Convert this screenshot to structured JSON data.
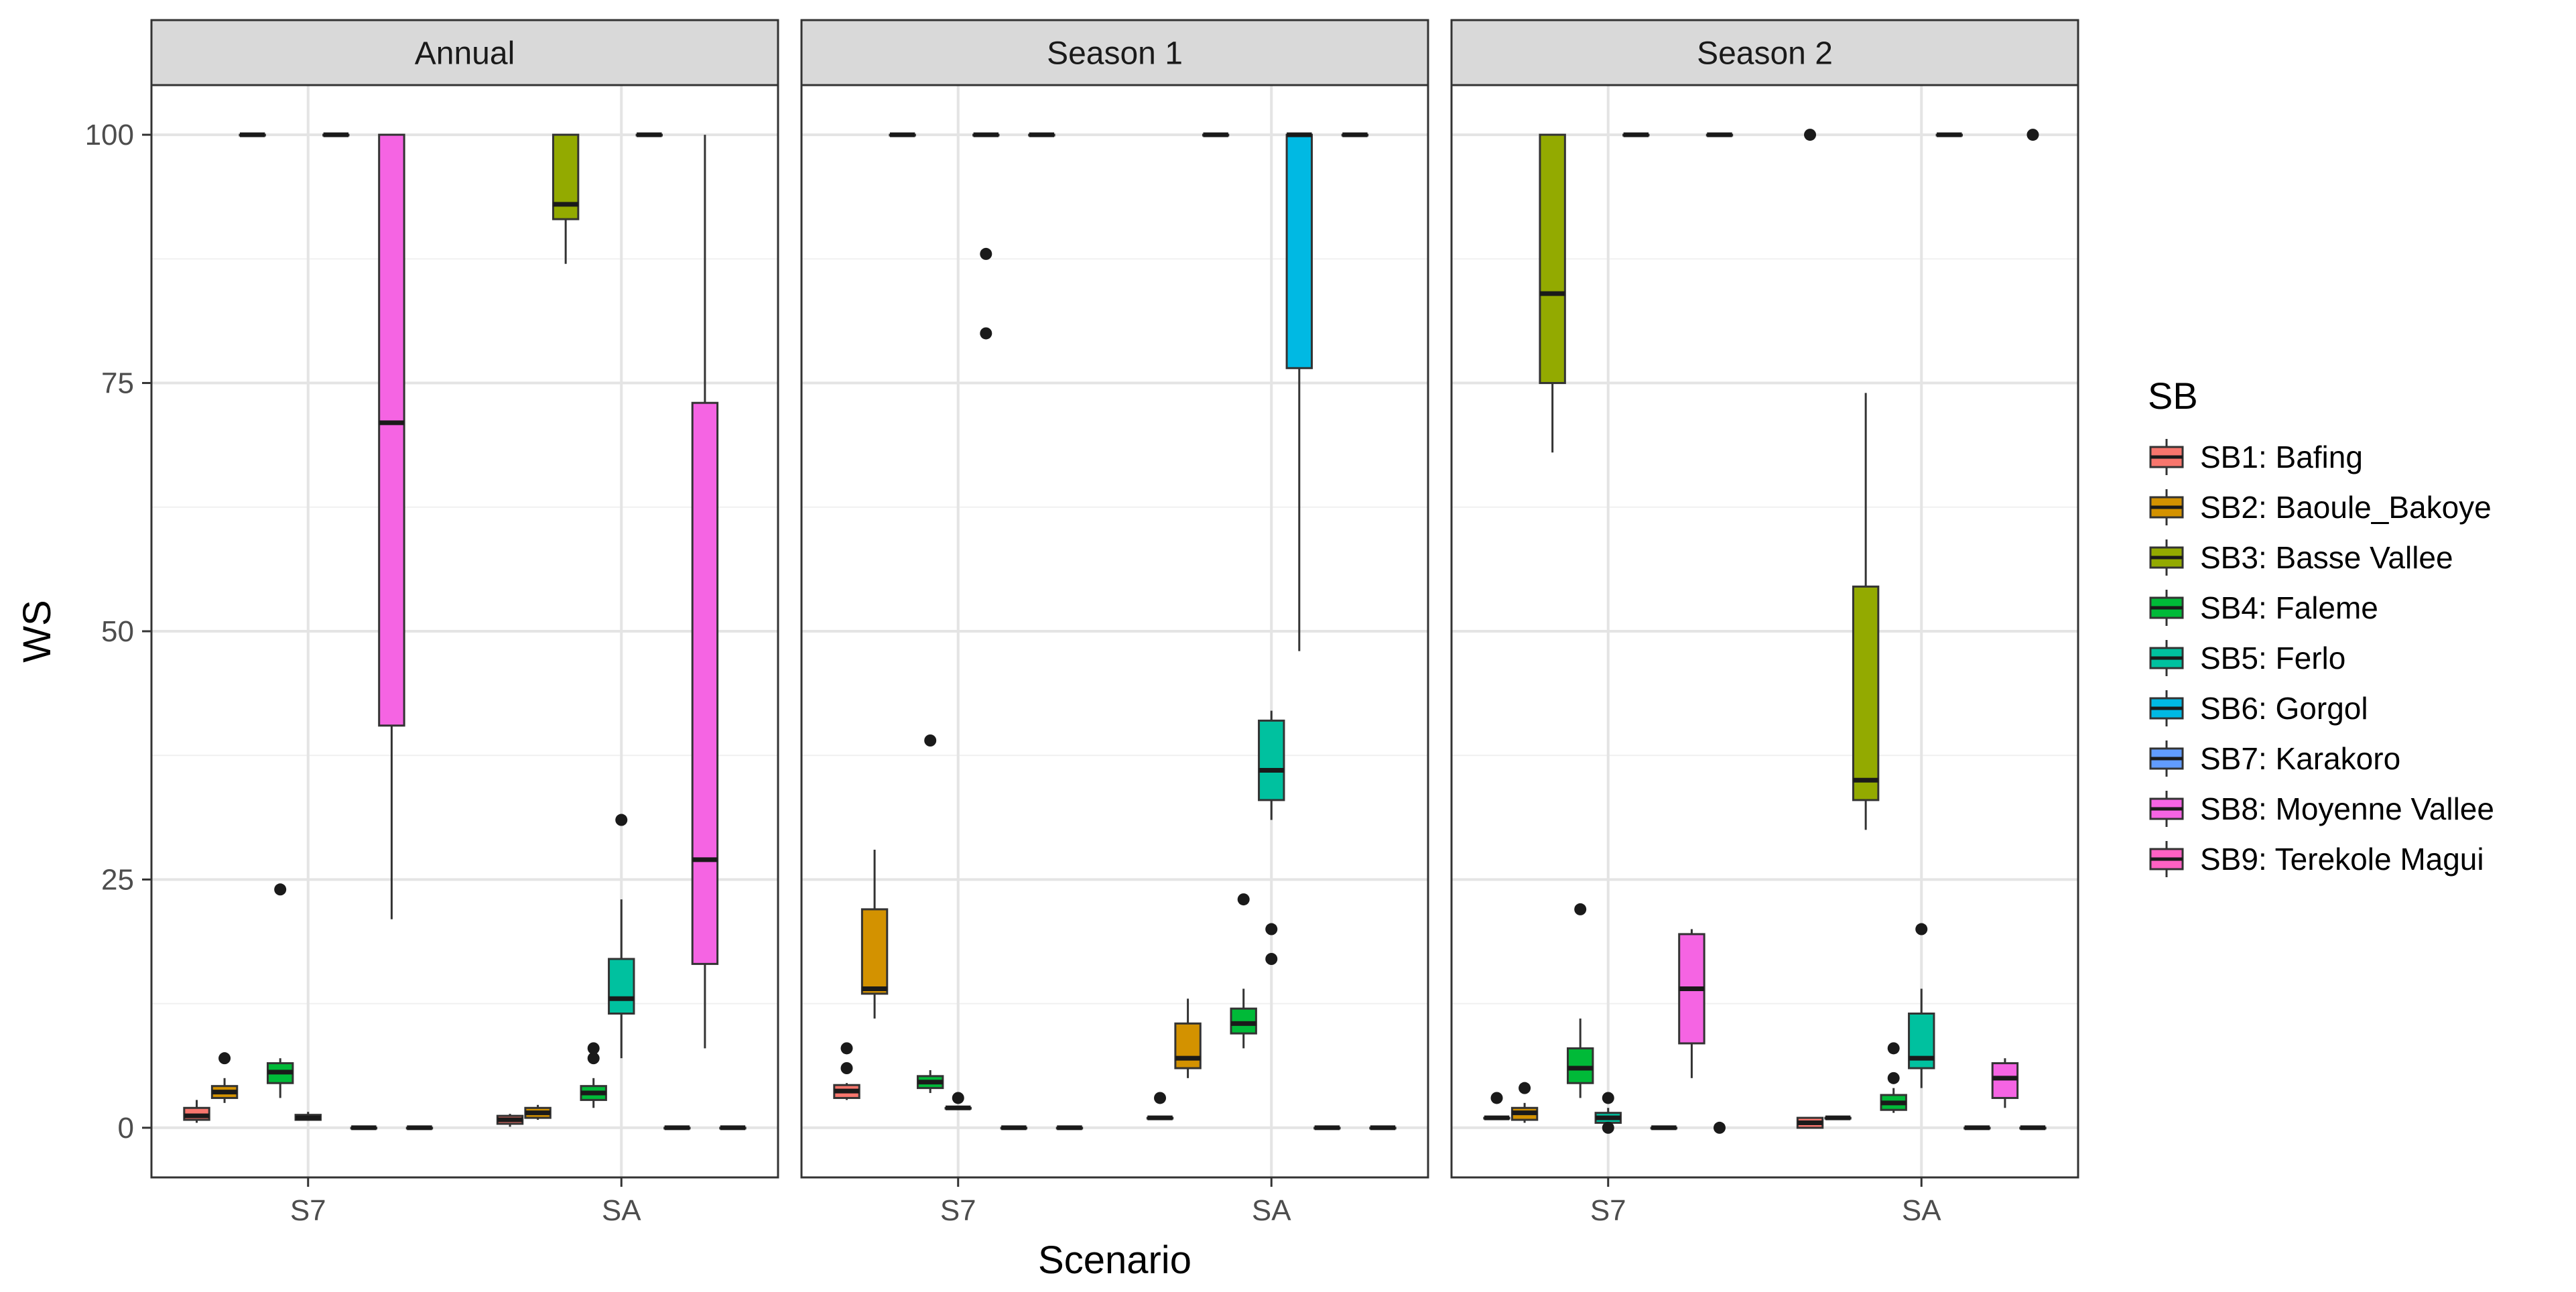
{
  "chart_data": {
    "type": "boxplot",
    "xlabel": "Scenario",
    "ylabel": "WS",
    "ylim": [
      -5,
      105
    ],
    "yticks": [
      0,
      25,
      50,
      75,
      100
    ],
    "ytick_labels": [
      "0",
      "25",
      "50",
      "75",
      "100"
    ],
    "categories": [
      "S7",
      "SA"
    ],
    "legend": {
      "title": "SB",
      "position": "right",
      "items": [
        {
          "id": "SB1",
          "label": "SB1:  Bafing",
          "color": "#F8766D"
        },
        {
          "id": "SB2",
          "label": "SB2:  Baoule_Bakoye",
          "color": "#D39200"
        },
        {
          "id": "SB3",
          "label": "SB3:  Basse Vallee",
          "color": "#93AA00"
        },
        {
          "id": "SB4",
          "label": "SB4:  Faleme",
          "color": "#00BA38"
        },
        {
          "id": "SB5",
          "label": "SB5:  Ferlo",
          "color": "#00C19F"
        },
        {
          "id": "SB6",
          "label": "SB6:  Gorgol",
          "color": "#00B9E3"
        },
        {
          "id": "SB7",
          "label": "SB7:  Karakoro",
          "color": "#619CFF"
        },
        {
          "id": "SB8",
          "label": "SB8:  Moyenne Vallee",
          "color": "#F564E3"
        },
        {
          "id": "SB9",
          "label": "SB9:  Terekole Magui",
          "color": "#FF61C3"
        }
      ]
    },
    "panels": [
      {
        "title": "Annual",
        "groups": [
          {
            "category": "S7",
            "boxes": [
              {
                "sb": 1,
                "q1": 0.8,
                "median": 1.2,
                "q3": 2,
                "lo": 0.5,
                "hi": 2.8,
                "outliers": []
              },
              {
                "sb": 2,
                "q1": 3,
                "median": 3.6,
                "q3": 4.2,
                "lo": 2.5,
                "hi": 5,
                "outliers": [
                  7
                ]
              },
              {
                "sb": 3,
                "q1": 100,
                "median": 100,
                "q3": 100,
                "lo": 100,
                "hi": 100,
                "outliers": []
              },
              {
                "sb": 4,
                "q1": 4.5,
                "median": 5.6,
                "q3": 6.5,
                "lo": 3,
                "hi": 7,
                "outliers": [
                  24
                ]
              },
              {
                "sb": 5,
                "q1": 0.8,
                "median": 1,
                "q3": 1.3,
                "lo": 0.7,
                "hi": 1.6,
                "outliers": []
              },
              {
                "sb": 6,
                "q1": 100,
                "median": 100,
                "q3": 100,
                "lo": 100,
                "hi": 100,
                "outliers": []
              },
              {
                "sb": 7,
                "q1": 0,
                "median": 0,
                "q3": 0,
                "lo": 0,
                "hi": 0,
                "outliers": []
              },
              {
                "sb": 8,
                "q1": 40.5,
                "median": 71,
                "q3": 100,
                "lo": 21,
                "hi": 100,
                "outliers": []
              },
              {
                "sb": 9,
                "q1": 0,
                "median": 0,
                "q3": 0,
                "lo": 0,
                "hi": 0,
                "outliers": []
              }
            ]
          },
          {
            "category": "SA",
            "boxes": [
              {
                "sb": 1,
                "q1": 0.4,
                "median": 0.8,
                "q3": 1.2,
                "lo": 0.1,
                "hi": 1.4,
                "outliers": []
              },
              {
                "sb": 2,
                "q1": 1,
                "median": 1.5,
                "q3": 2,
                "lo": 0.8,
                "hi": 2.3,
                "outliers": []
              },
              {
                "sb": 3,
                "q1": 91.5,
                "median": 93,
                "q3": 100,
                "lo": 87,
                "hi": 100,
                "outliers": []
              },
              {
                "sb": 4,
                "q1": 2.8,
                "median": 3.5,
                "q3": 4.2,
                "lo": 2,
                "hi": 5,
                "outliers": [
                  7,
                  8
                ]
              },
              {
                "sb": 5,
                "q1": 11.5,
                "median": 13,
                "q3": 17,
                "lo": 7,
                "hi": 23,
                "outliers": [
                  31
                ]
              },
              {
                "sb": 6,
                "q1": 100,
                "median": 100,
                "q3": 100,
                "lo": 100,
                "hi": 100,
                "outliers": []
              },
              {
                "sb": 7,
                "q1": 0,
                "median": 0,
                "q3": 0,
                "lo": 0,
                "hi": 0,
                "outliers": []
              },
              {
                "sb": 8,
                "q1": 16.5,
                "median": 27,
                "q3": 73,
                "lo": 8,
                "hi": 100,
                "outliers": []
              },
              {
                "sb": 9,
                "q1": 0,
                "median": 0,
                "q3": 0,
                "lo": 0,
                "hi": 0,
                "outliers": []
              }
            ]
          }
        ]
      },
      {
        "title": "Season 1",
        "groups": [
          {
            "category": "S7",
            "boxes": [
              {
                "sb": 1,
                "q1": 3,
                "median": 3.7,
                "q3": 4.3,
                "lo": 2.8,
                "hi": 4.5,
                "outliers": [
                  6,
                  8
                ]
              },
              {
                "sb": 2,
                "q1": 13.5,
                "median": 14,
                "q3": 22,
                "lo": 11,
                "hi": 28,
                "outliers": []
              },
              {
                "sb": 3,
                "q1": 100,
                "median": 100,
                "q3": 100,
                "lo": 100,
                "hi": 100,
                "outliers": []
              },
              {
                "sb": 4,
                "q1": 4,
                "median": 4.6,
                "q3": 5.2,
                "lo": 3.5,
                "hi": 5.8,
                "outliers": [
                  39
                ]
              },
              {
                "sb": 5,
                "q1": 2,
                "median": 2,
                "q3": 2,
                "lo": 2,
                "hi": 2,
                "outliers": [
                  3
                ]
              },
              {
                "sb": 6,
                "q1": 100,
                "median": 100,
                "q3": 100,
                "lo": 100,
                "hi": 100,
                "outliers": [
                  80,
                  88
                ]
              },
              {
                "sb": 7,
                "q1": 0,
                "median": 0,
                "q3": 0,
                "lo": 0,
                "hi": 0,
                "outliers": []
              },
              {
                "sb": 8,
                "q1": 100,
                "median": 100,
                "q3": 100,
                "lo": 100,
                "hi": 100,
                "outliers": []
              },
              {
                "sb": 9,
                "q1": 0,
                "median": 0,
                "q3": 0,
                "lo": 0,
                "hi": 0,
                "outliers": []
              }
            ]
          },
          {
            "category": "SA",
            "boxes": [
              {
                "sb": 1,
                "q1": 1,
                "median": 1,
                "q3": 1,
                "lo": 1,
                "hi": 1,
                "outliers": [
                  3
                ]
              },
              {
                "sb": 2,
                "q1": 6,
                "median": 7,
                "q3": 10.5,
                "lo": 5,
                "hi": 13,
                "outliers": []
              },
              {
                "sb": 3,
                "q1": 100,
                "median": 100,
                "q3": 100,
                "lo": 100,
                "hi": 100,
                "outliers": []
              },
              {
                "sb": 4,
                "q1": 9.5,
                "median": 10.5,
                "q3": 12,
                "lo": 8,
                "hi": 14,
                "outliers": [
                  23
                ]
              },
              {
                "sb": 5,
                "q1": 33,
                "median": 36,
                "q3": 41,
                "lo": 31,
                "hi": 42,
                "outliers": [
                  17,
                  20
                ]
              },
              {
                "sb": 6,
                "q1": 76.5,
                "median": 100,
                "q3": 100,
                "lo": 48,
                "hi": 100,
                "outliers": []
              },
              {
                "sb": 7,
                "q1": 0,
                "median": 0,
                "q3": 0,
                "lo": 0,
                "hi": 0,
                "outliers": []
              },
              {
                "sb": 8,
                "q1": 100,
                "median": 100,
                "q3": 100,
                "lo": 100,
                "hi": 100,
                "outliers": []
              },
              {
                "sb": 9,
                "q1": 0,
                "median": 0,
                "q3": 0,
                "lo": 0,
                "hi": 0,
                "outliers": []
              }
            ]
          }
        ]
      },
      {
        "title": "Season 2",
        "groups": [
          {
            "category": "S7",
            "boxes": [
              {
                "sb": 1,
                "q1": 1,
                "median": 1,
                "q3": 1,
                "lo": 1,
                "hi": 1,
                "outliers": [
                  3
                ]
              },
              {
                "sb": 2,
                "q1": 0.8,
                "median": 1.5,
                "q3": 2,
                "lo": 0.5,
                "hi": 2.5,
                "outliers": [
                  4
                ]
              },
              {
                "sb": 3,
                "q1": 75,
                "median": 84,
                "q3": 100,
                "lo": 68,
                "hi": 100,
                "outliers": []
              },
              {
                "sb": 4,
                "q1": 4.5,
                "median": 6,
                "q3": 8,
                "lo": 3,
                "hi": 11,
                "outliers": [
                  22
                ]
              },
              {
                "sb": 5,
                "q1": 0.5,
                "median": 1,
                "q3": 1.5,
                "lo": 0.3,
                "hi": 2,
                "outliers": [
                  0,
                  3
                ]
              },
              {
                "sb": 6,
                "q1": 100,
                "median": 100,
                "q3": 100,
                "lo": 100,
                "hi": 100,
                "outliers": []
              },
              {
                "sb": 7,
                "q1": 0,
                "median": 0,
                "q3": 0,
                "lo": 0,
                "hi": 0,
                "outliers": []
              },
              {
                "sb": 8,
                "q1": 8.5,
                "median": 14,
                "q3": 19.5,
                "lo": 5,
                "hi": 20,
                "outliers": []
              },
              {
                "sb": 9,
                "q1": 100,
                "median": 100,
                "q3": 100,
                "lo": 100,
                "hi": 100,
                "outliers": [
                  0
                ]
              }
            ]
          },
          {
            "category": "SA",
            "boxes": [
              {
                "sb": 1,
                "q1": 0,
                "median": 0.5,
                "q3": 1,
                "lo": 0,
                "hi": 1,
                "outliers": [
                  100
                ]
              },
              {
                "sb": 2,
                "q1": 1,
                "median": 1,
                "q3": 1,
                "lo": 1,
                "hi": 1,
                "outliers": []
              },
              {
                "sb": 3,
                "q1": 33,
                "median": 35,
                "q3": 54.5,
                "lo": 30,
                "hi": 74,
                "outliers": []
              },
              {
                "sb": 4,
                "q1": 1.8,
                "median": 2.5,
                "q3": 3.3,
                "lo": 1.5,
                "hi": 4,
                "outliers": [
                  5,
                  8
                ]
              },
              {
                "sb": 5,
                "q1": 6,
                "median": 7,
                "q3": 11.5,
                "lo": 4,
                "hi": 14,
                "outliers": [
                  20
                ]
              },
              {
                "sb": 6,
                "q1": 100,
                "median": 100,
                "q3": 100,
                "lo": 100,
                "hi": 100,
                "outliers": []
              },
              {
                "sb": 7,
                "q1": 0,
                "median": 0,
                "q3": 0,
                "lo": 0,
                "hi": 0,
                "outliers": []
              },
              {
                "sb": 8,
                "q1": 3,
                "median": 5,
                "q3": 6.5,
                "lo": 2,
                "hi": 7,
                "outliers": []
              },
              {
                "sb": 9,
                "q1": 0,
                "median": 0,
                "q3": 0,
                "lo": 0,
                "hi": 0,
                "outliers": [
                  100
                ]
              }
            ]
          }
        ]
      }
    ]
  }
}
